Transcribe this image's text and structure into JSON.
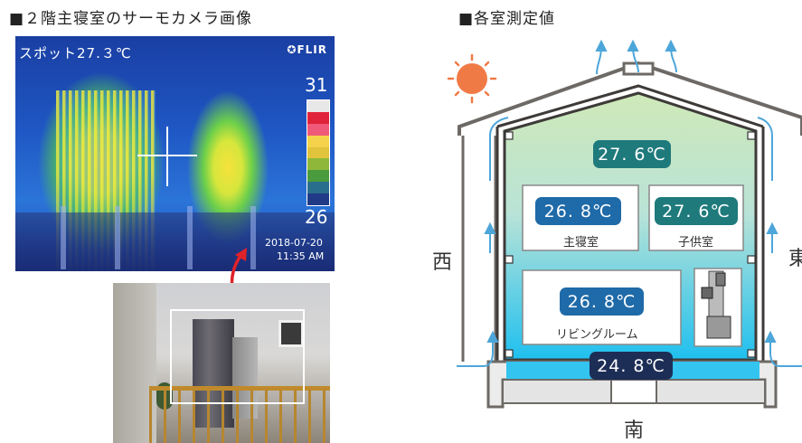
{
  "left_section": {
    "title": "■２階主寝室のサーモカメラ画像",
    "thermal": {
      "spot_label": "スポット27.３℃",
      "brand": "FLIR",
      "scale_max": "31",
      "scale_min": "26",
      "scale_colors": [
        "#e8e8e8",
        "#e0233a",
        "#f05a78",
        "#f4d24a",
        "#e2c33c",
        "#8fb83a",
        "#4a9a3e",
        "#2a6e8e",
        "#203a88"
      ],
      "timestamp_date": "2018-07-20",
      "timestamp_time": "11:35 AM"
    }
  },
  "right_section": {
    "title": "■各室測定値",
    "attic_temp": "27. 6℃",
    "master_bedroom": {
      "temp": "26. 8℃",
      "label": "主寝室"
    },
    "kids_room": {
      "temp": "27. 6℃",
      "label": "子供室"
    },
    "living_room": {
      "temp": "26. 8℃",
      "label": "リビングルーム"
    },
    "underfloor_temp": "24. 8℃",
    "directions": {
      "west": "西",
      "east": "東",
      "south": "南"
    },
    "colors": {
      "pill_dark_teal": "#1f7a7c",
      "pill_blue": "#1f6aa8",
      "pill_navy": "#1d2e56",
      "sun": "#f07a46",
      "arrow": "#4da6d9"
    }
  }
}
